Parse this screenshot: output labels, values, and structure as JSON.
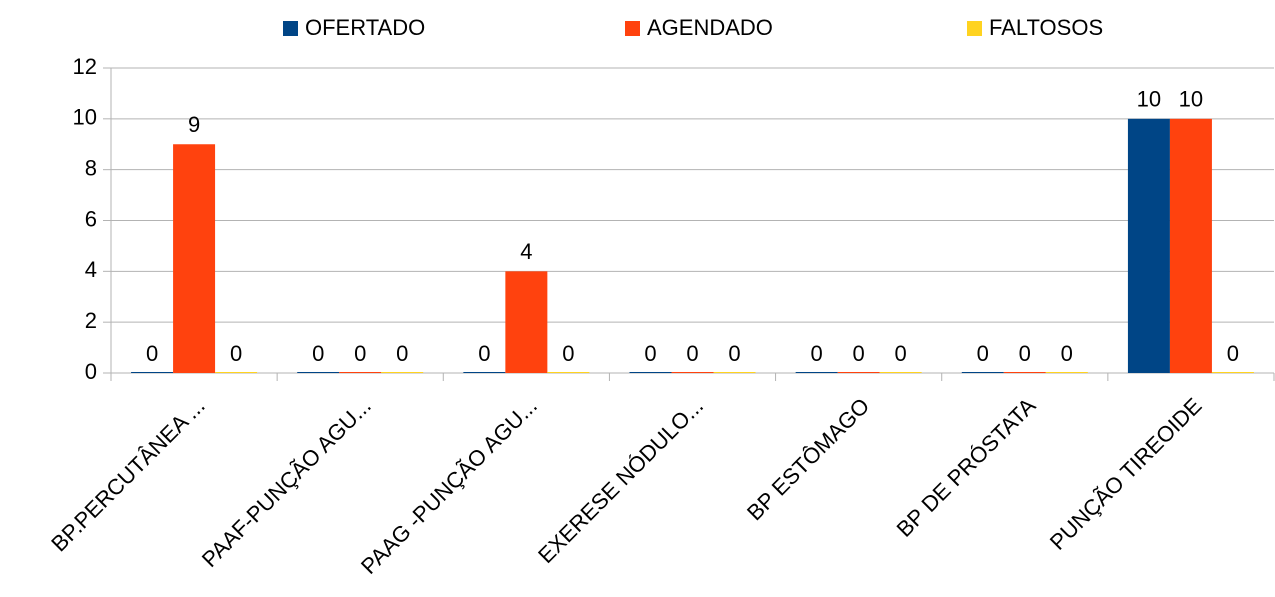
{
  "chart_data": {
    "type": "bar",
    "categories": [
      "BP.PERCUTÂNEA ...",
      "PAAF-PUNÇÃO AGU...",
      "PAAG -PUNÇÃO AGU...",
      "EXERESE NÓDULO...",
      "BP ESTÔMAGO",
      "BP DE PRÓSTATA",
      "PUNÇÃO TIREOIDE"
    ],
    "series": [
      {
        "name": "OFERTADO",
        "color": "#004586",
        "values": [
          0,
          0,
          0,
          0,
          0,
          0,
          10
        ]
      },
      {
        "name": "AGENDADO",
        "color": "#ff420e",
        "values": [
          9,
          0,
          4,
          0,
          0,
          0,
          10
        ]
      },
      {
        "name": "FALTOSOS",
        "color": "#ffd320",
        "values": [
          0,
          0,
          0,
          0,
          0,
          0,
          0
        ]
      }
    ],
    "ylim": [
      0,
      12
    ],
    "yticks": [
      0,
      2,
      4,
      6,
      8,
      10,
      12
    ],
    "grid": true,
    "legend": "top"
  }
}
